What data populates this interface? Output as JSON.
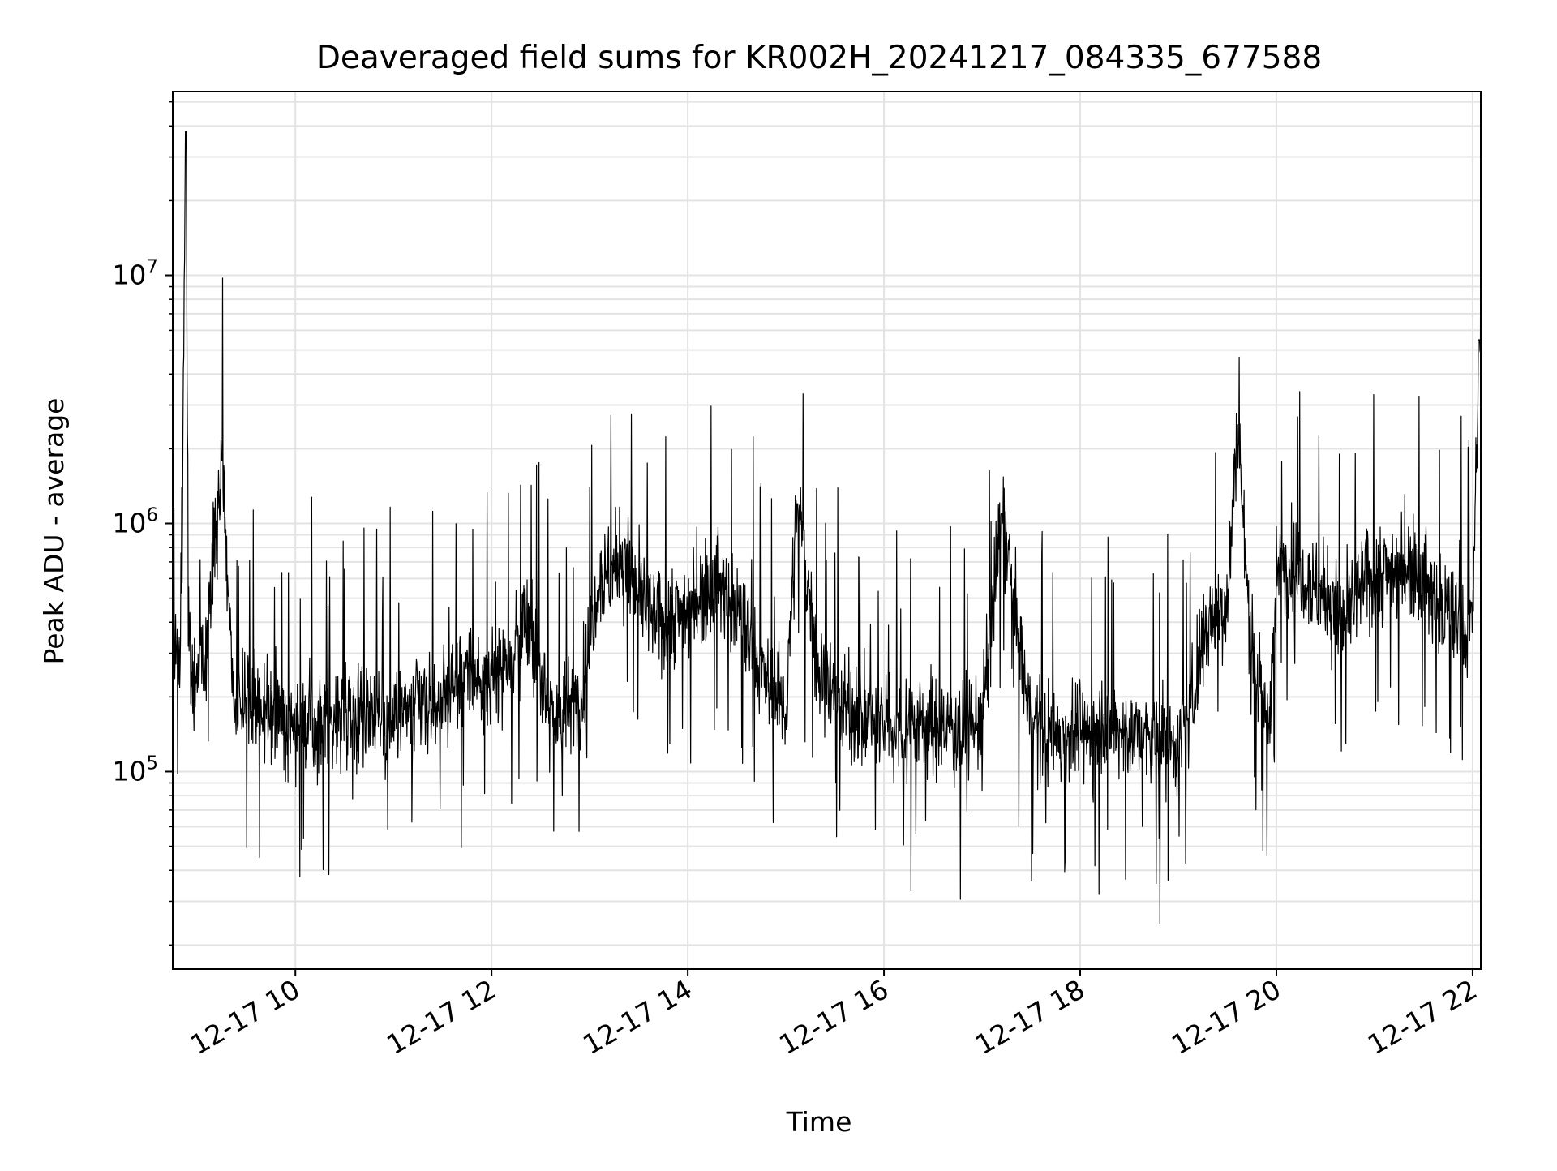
{
  "chart_data": {
    "type": "line",
    "title": "Deaveraged field sums for KR002H_20241217_084335_677588",
    "xlabel": "Time",
    "ylabel": "Peak ADU - average",
    "x_scale": "time",
    "y_scale": "log",
    "xlim": [
      "2024-12-17 08:45",
      "2024-12-17 22:05"
    ],
    "ylim": [
      16000,
      55000000
    ],
    "grid": true,
    "legend": "none",
    "series_color": "#000000",
    "grid_color": "#e3e3e3",
    "x_ticks": [
      {
        "value": "2024-12-17 10:00",
        "label": "12-17 10"
      },
      {
        "value": "2024-12-17 12:00",
        "label": "12-17 12"
      },
      {
        "value": "2024-12-17 14:00",
        "label": "12-17 14"
      },
      {
        "value": "2024-12-17 16:00",
        "label": "12-17 16"
      },
      {
        "value": "2024-12-17 18:00",
        "label": "12-17 18"
      },
      {
        "value": "2024-12-17 20:00",
        "label": "12-17 20"
      },
      {
        "value": "2024-12-17 22:00",
        "label": "12-17 22"
      }
    ],
    "y_ticks": [
      {
        "value": 100000,
        "base": "10",
        "exp": "5"
      },
      {
        "value": 1000000,
        "base": "10",
        "exp": "6"
      },
      {
        "value": 10000000,
        "base": "10",
        "exp": "7"
      }
    ],
    "series": [
      {
        "x": [
          "2024-12-17 08:45",
          "2024-12-17 08:50",
          "2024-12-17 08:53",
          "2024-12-17 08:55",
          "2024-12-17 08:58",
          "2024-12-17 09:05",
          "2024-12-17 09:15",
          "2024-12-17 09:23",
          "2024-12-17 09:30",
          "2024-12-17 09:45",
          "2024-12-17 10:00",
          "2024-12-17 10:15",
          "2024-12-17 10:30",
          "2024-12-17 10:45",
          "2024-12-17 10:55",
          "2024-12-17 11:05",
          "2024-12-17 11:30",
          "2024-12-17 11:45",
          "2024-12-17 12:00",
          "2024-12-17 12:20",
          "2024-12-17 12:40",
          "2024-12-17 12:55",
          "2024-12-17 13:05",
          "2024-12-17 13:20",
          "2024-12-17 13:40",
          "2024-12-17 14:00",
          "2024-12-17 14:15",
          "2024-12-17 14:30",
          "2024-12-17 14:45",
          "2024-12-17 15:00",
          "2024-12-17 15:07",
          "2024-12-17 15:20",
          "2024-12-17 15:40",
          "2024-12-17 16:00",
          "2024-12-17 16:20",
          "2024-12-17 16:40",
          "2024-12-17 17:00",
          "2024-12-17 17:12",
          "2024-12-17 17:30",
          "2024-12-17 17:50",
          "2024-12-17 18:10",
          "2024-12-17 18:30",
          "2024-12-17 18:50",
          "2024-12-17 19:05",
          "2024-12-17 19:15",
          "2024-12-17 19:30",
          "2024-12-17 19:36",
          "2024-12-17 19:45",
          "2024-12-17 19:55",
          "2024-12-17 20:00",
          "2024-12-17 20:10",
          "2024-12-17 20:25",
          "2024-12-17 20:40",
          "2024-12-17 20:55",
          "2024-12-17 21:10",
          "2024-12-17 21:25",
          "2024-12-17 21:35",
          "2024-12-17 21:45",
          "2024-12-17 21:55",
          "2024-12-17 22:00",
          "2024-12-17 22:04"
        ],
        "y": [
          350000,
          250000,
          38000000,
          300000,
          230000,
          280000,
          1800000,
          180000,
          200000,
          170000,
          160000,
          150000,
          170000,
          180000,
          160000,
          170000,
          190000,
          250000,
          220000,
          400000,
          160000,
          200000,
          600000,
          700000,
          400000,
          450000,
          600000,
          450000,
          250000,
          180000,
          1200000,
          260000,
          170000,
          150000,
          160000,
          150000,
          155000,
          1100000,
          150000,
          140000,
          150000,
          145000,
          130000,
          140000,
          350000,
          500000,
          2500000,
          300000,
          150000,
          600000,
          700000,
          550000,
          400000,
          600000,
          650000,
          700000,
          500000,
          450000,
          350000,
          400000,
          5500000
        ]
      }
    ]
  }
}
